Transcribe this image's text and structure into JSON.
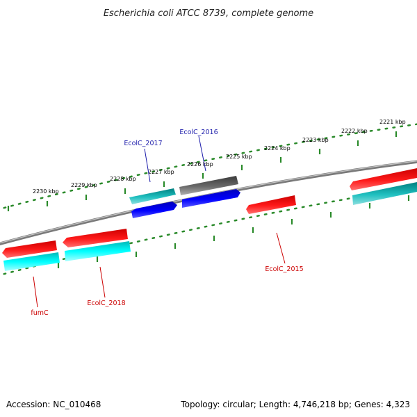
{
  "title": "Escherichia coli ATCC 8739, complete genome",
  "footer": {
    "accession": "Accession: NC_010468",
    "summary": "Topology: circular; Length: 4,746,218 bp; Genes: 4,323"
  },
  "colors": {
    "backbone": "#8a8a8a",
    "ruler": "#2a8a2a",
    "gene_label_red": "#cc0000",
    "gene_label_blue": "#1a1aaa"
  },
  "ruler_labels": [
    "2221 kbp",
    "2222 kbp",
    "2223 kbp",
    "2224 kbp",
    "2225 kbp",
    "2226 kbp",
    "2227 kbp",
    "2228 kbp",
    "2229 kbp",
    "2230 kbp"
  ],
  "gene_labels": [
    {
      "text": "EcolC_2017",
      "color": "blue"
    },
    {
      "text": "EcolC_2016",
      "color": "blue"
    },
    {
      "text": "EcolC_2015",
      "color": "red"
    },
    {
      "text": "EcolC_2018",
      "color": "red"
    },
    {
      "text": "fumC",
      "color": "red"
    }
  ],
  "features": [
    {
      "name": "feature-red-left-1",
      "color": "red"
    },
    {
      "name": "feature-cyan-left-1",
      "color": "cyan"
    },
    {
      "name": "feature-red-left-2",
      "color": "red"
    },
    {
      "name": "feature-cyan-left-2",
      "color": "cyan"
    },
    {
      "name": "feature-teal-1",
      "color": "teal"
    },
    {
      "name": "feature-blue-1",
      "color": "blue"
    },
    {
      "name": "feature-gray-1",
      "color": "gray"
    },
    {
      "name": "feature-blue-2",
      "color": "blue"
    },
    {
      "name": "feature-red-middle",
      "color": "red"
    },
    {
      "name": "feature-red-right",
      "color": "red"
    },
    {
      "name": "feature-teal-right",
      "color": "teal"
    }
  ]
}
